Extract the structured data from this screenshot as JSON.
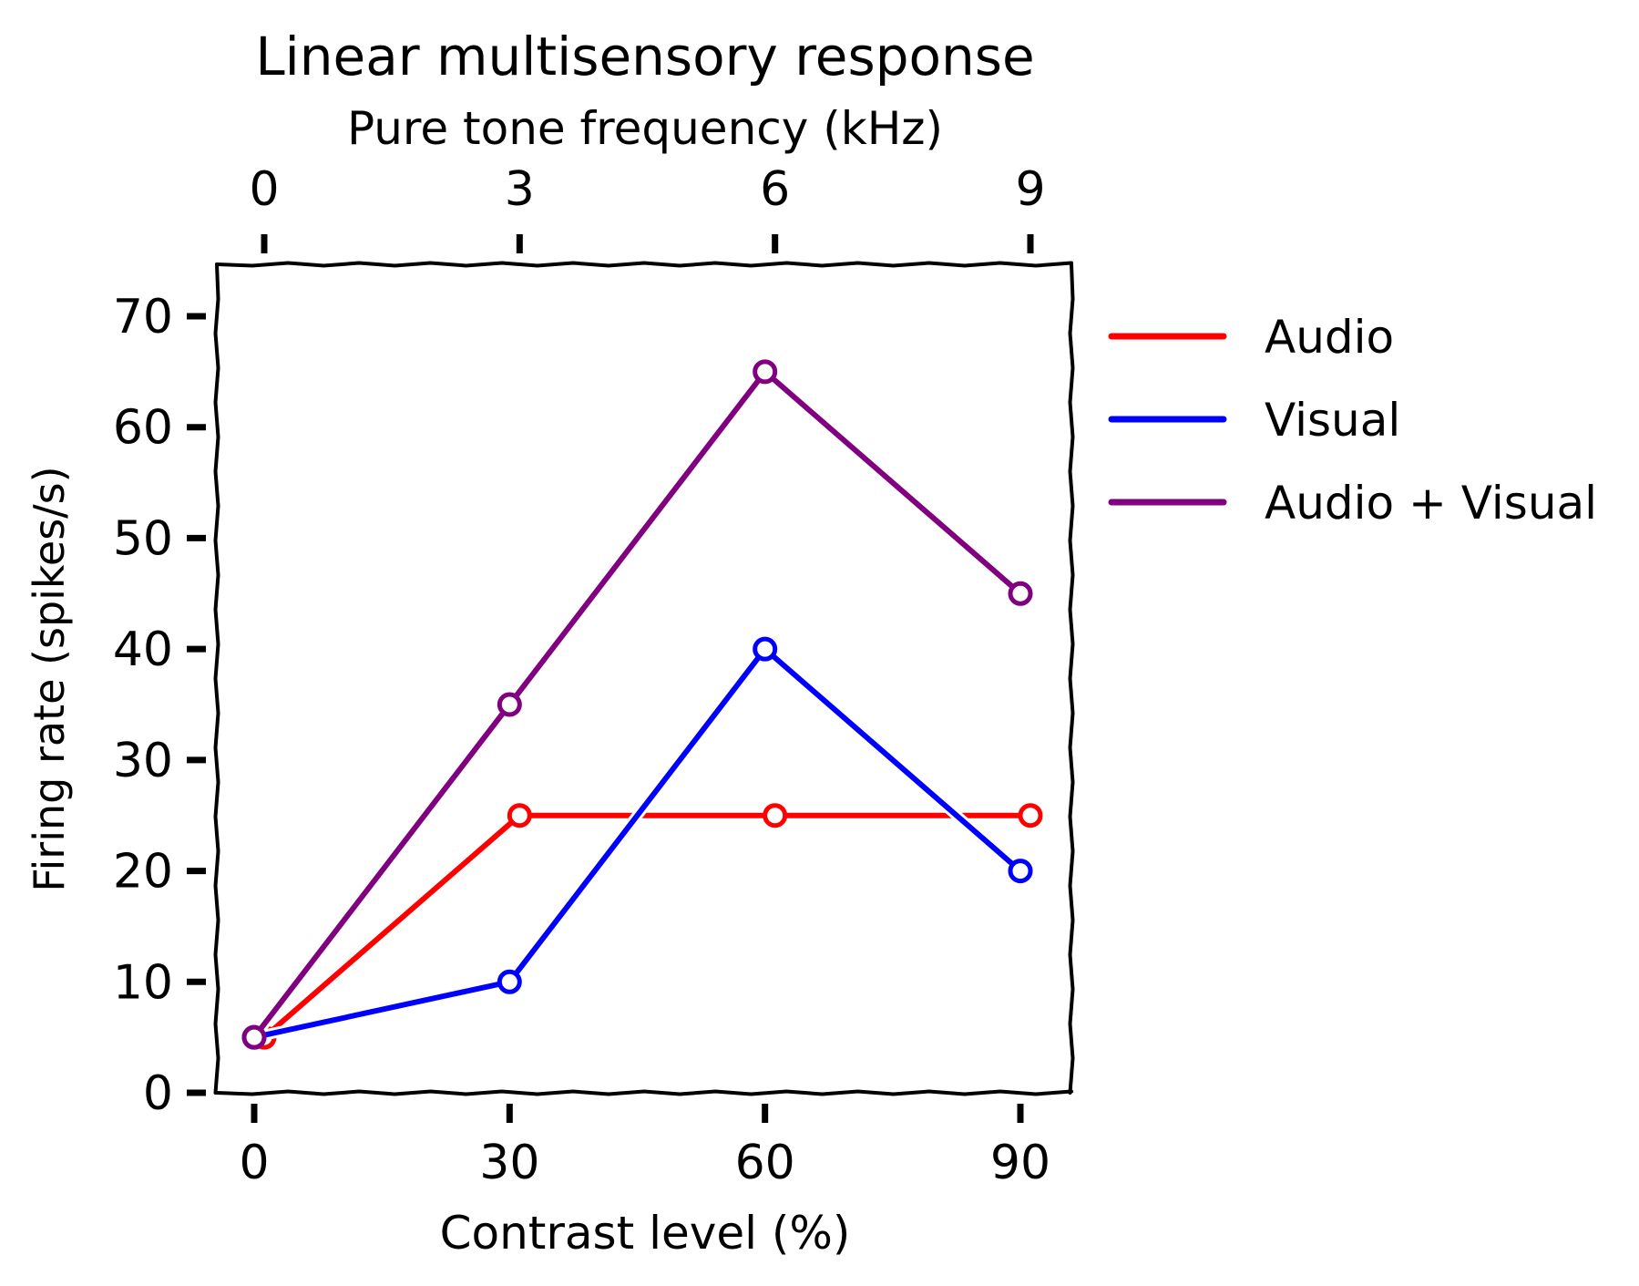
{
  "chart_data": {
    "type": "line",
    "title": "Linear multisensory response",
    "top_axis": {
      "label": "Pure tone frequency (kHz)",
      "label_color": "#ff0000",
      "ticks": [
        "0",
        "3",
        "6",
        "9"
      ],
      "tick_values": [
        0,
        3,
        6,
        9
      ],
      "range": [
        0,
        9
      ]
    },
    "x_axis": {
      "label": "Contrast level (%)",
      "label_color": "#0000ff",
      "ticks": [
        "0",
        "30",
        "60",
        "90"
      ],
      "tick_values": [
        0,
        30,
        60,
        90
      ],
      "range": [
        0,
        90
      ]
    },
    "y_axis": {
      "label": "Firing rate (spikes/s)",
      "ticks": [
        "0",
        "10",
        "20",
        "30",
        "40",
        "50",
        "60",
        "70"
      ],
      "tick_values": [
        0,
        10,
        20,
        30,
        40,
        50,
        60,
        70
      ],
      "ylim": [
        0,
        75
      ]
    },
    "series": [
      {
        "name": "Audio",
        "color": "#ff0000",
        "axis": "top",
        "x": [
          0,
          3,
          6,
          9
        ],
        "y": [
          5,
          25,
          25,
          25
        ]
      },
      {
        "name": "Visual",
        "color": "#0000ff",
        "axis": "bottom",
        "x": [
          0,
          30,
          60,
          90
        ],
        "y": [
          5,
          10,
          40,
          20
        ]
      },
      {
        "name": "Audio + Visual",
        "color": "#800080",
        "axis": "bottom",
        "x": [
          0,
          30,
          60,
          90
        ],
        "y": [
          5,
          35,
          65,
          45
        ]
      }
    ],
    "legend_position": "outside-right",
    "grid": false,
    "style": "hand-drawn"
  }
}
